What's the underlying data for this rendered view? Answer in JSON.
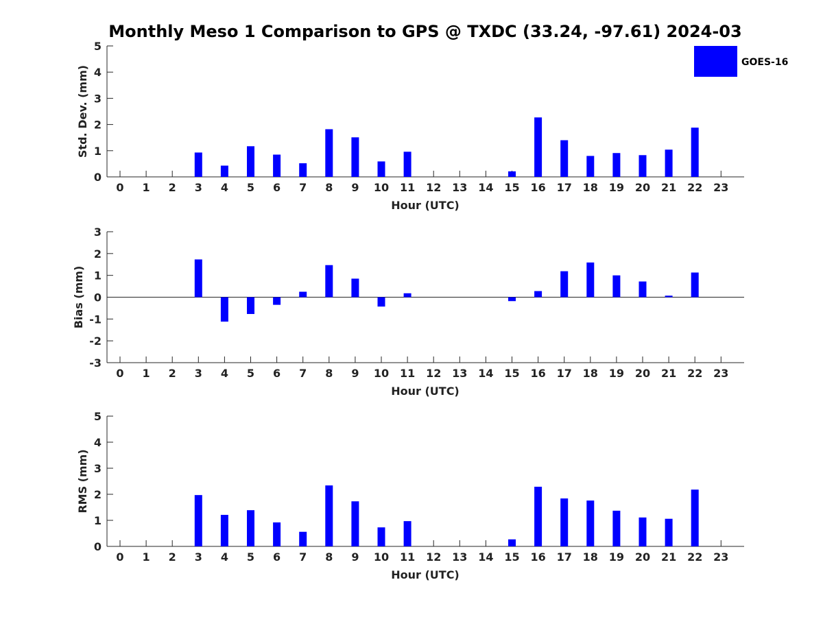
{
  "figure": {
    "title": "Monthly Meso 1 Comparison to GPS @ TXDC (33.24, -97.61) 2024-03",
    "legend": {
      "label": "GOES-16",
      "color": "#0000ff",
      "placement": "top-right"
    },
    "bar_color": "#0000ff"
  },
  "chart_data": [
    {
      "type": "bar",
      "id": "stddev",
      "title": "Monthly Meso 1 Comparison to GPS @ TXDC (33.24, -97.61) 2024-03",
      "xlabel": "Hour (UTC)",
      "ylabel": "Std. Dev. (mm)",
      "categories": [
        0,
        1,
        2,
        3,
        4,
        5,
        6,
        7,
        8,
        9,
        10,
        11,
        12,
        13,
        14,
        15,
        16,
        17,
        18,
        19,
        20,
        21,
        22,
        23
      ],
      "series": [
        {
          "name": "GOES-16",
          "values": [
            null,
            null,
            null,
            0.93,
            0.43,
            1.17,
            0.85,
            0.52,
            1.82,
            1.51,
            0.59,
            0.96,
            null,
            null,
            null,
            0.21,
            2.27,
            1.4,
            0.8,
            0.91,
            0.83,
            1.04,
            1.88,
            null
          ]
        }
      ],
      "ylim": [
        0,
        5
      ],
      "yticks": [
        0,
        1,
        2,
        3,
        4,
        5
      ],
      "grid": false
    },
    {
      "type": "bar",
      "id": "bias",
      "xlabel": "Hour (UTC)",
      "ylabel": "Bias (mm)",
      "categories": [
        0,
        1,
        2,
        3,
        4,
        5,
        6,
        7,
        8,
        9,
        10,
        11,
        12,
        13,
        14,
        15,
        16,
        17,
        18,
        19,
        20,
        21,
        22,
        23
      ],
      "series": [
        {
          "name": "GOES-16",
          "values": [
            null,
            null,
            null,
            1.73,
            -1.12,
            -0.77,
            -0.35,
            0.25,
            1.47,
            0.85,
            -0.43,
            0.18,
            null,
            null,
            null,
            -0.18,
            0.28,
            1.19,
            1.59,
            1.0,
            0.72,
            0.07,
            1.13,
            null
          ]
        }
      ],
      "ylim": [
        -3,
        3
      ],
      "yticks": [
        -3,
        -2,
        -1,
        0,
        1,
        2,
        3
      ],
      "zero_line": true,
      "grid": false
    },
    {
      "type": "bar",
      "id": "rms",
      "xlabel": "Hour (UTC)",
      "ylabel": "RMS (mm)",
      "categories": [
        0,
        1,
        2,
        3,
        4,
        5,
        6,
        7,
        8,
        9,
        10,
        11,
        12,
        13,
        14,
        15,
        16,
        17,
        18,
        19,
        20,
        21,
        22,
        23
      ],
      "series": [
        {
          "name": "GOES-16",
          "values": [
            null,
            null,
            null,
            1.97,
            1.21,
            1.39,
            0.92,
            0.56,
            2.34,
            1.73,
            0.73,
            0.97,
            null,
            null,
            null,
            0.27,
            2.29,
            1.84,
            1.76,
            1.37,
            1.11,
            1.06,
            2.18,
            null
          ]
        }
      ],
      "ylim": [
        0,
        5
      ],
      "yticks": [
        0,
        1,
        2,
        3,
        4,
        5
      ],
      "grid": false
    }
  ]
}
